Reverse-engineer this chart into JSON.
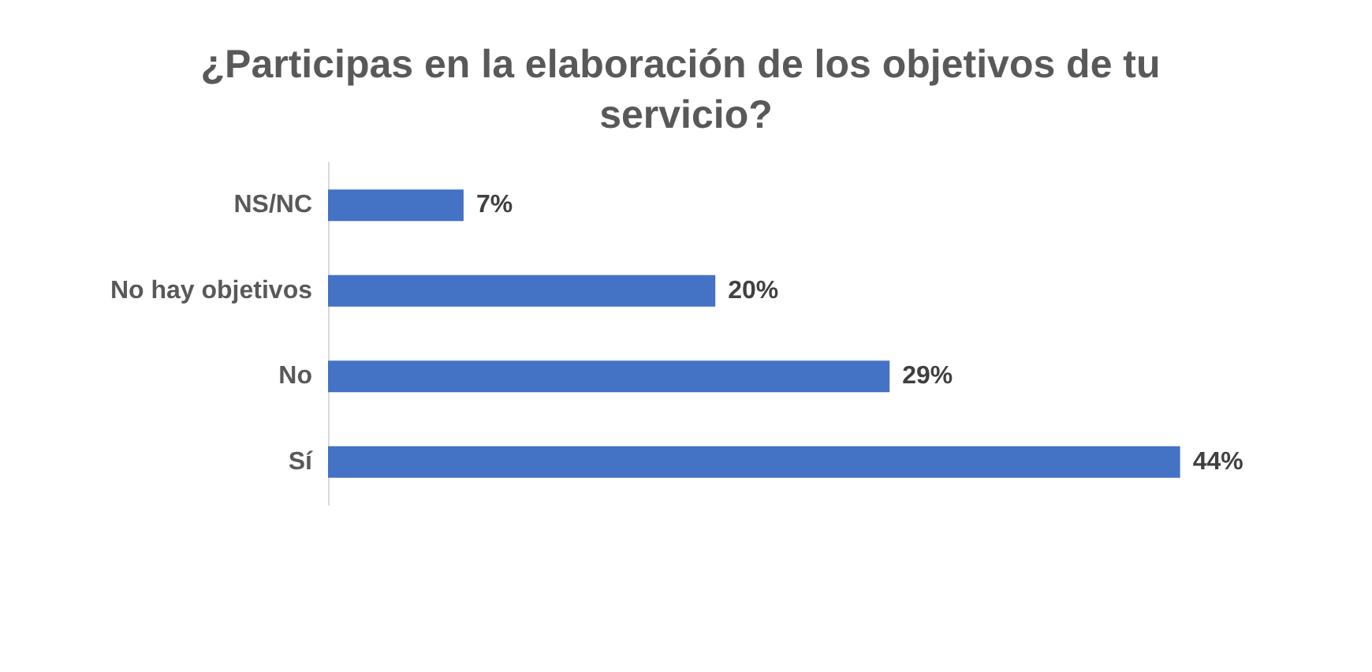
{
  "chart_data": {
    "type": "bar",
    "orientation": "horizontal",
    "title": "¿Participas en la elaboración de los objetivos de tu servicio?",
    "categories": [
      "NS/NC",
      "No hay objetivos",
      "No",
      "Sí"
    ],
    "values": [
      7,
      20,
      29,
      44
    ],
    "value_labels": [
      "7%",
      "20%",
      "29%",
      "44%"
    ],
    "color": "#4472c4",
    "tick_labels": "y"
  }
}
